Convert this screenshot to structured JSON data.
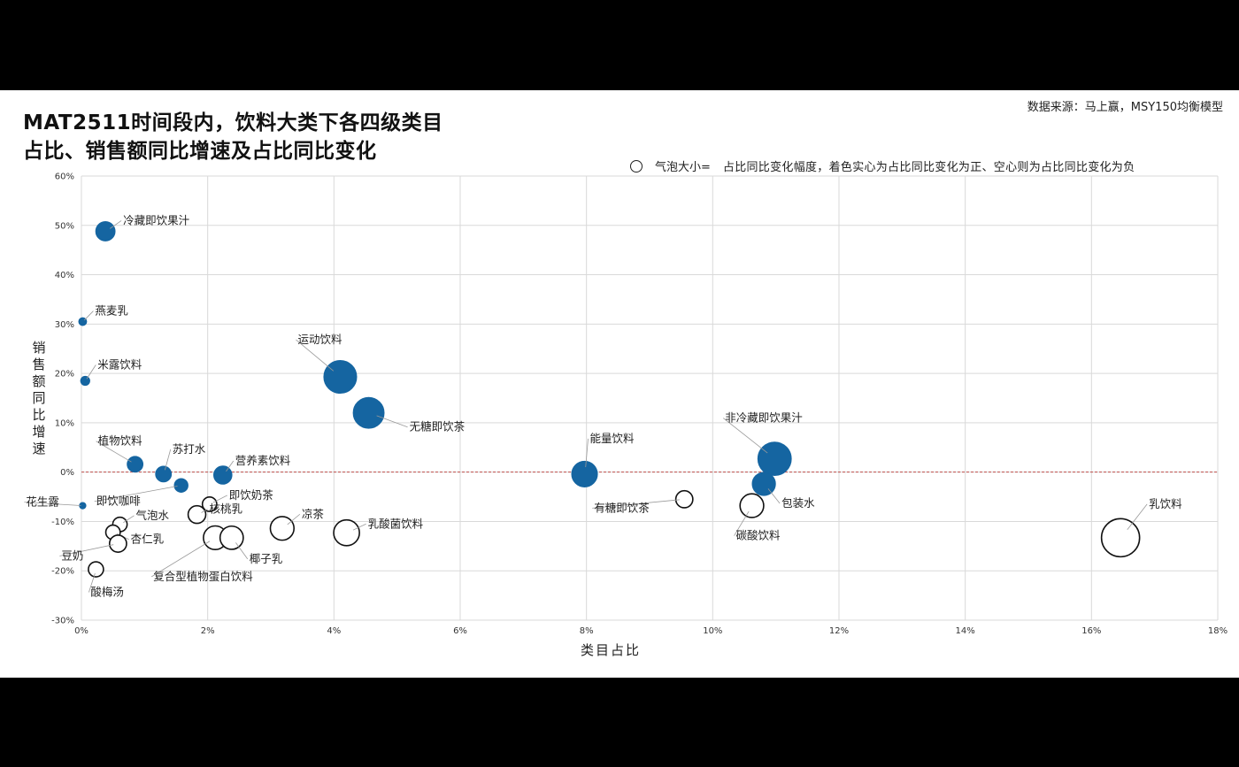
{
  "header": {
    "title_line1": "MAT2511时间段内，饮料大类下各四级类目",
    "title_line2": "占比、销售额同比增速及占比同比变化",
    "source": "数据来源：马上赢，MSY150均衡模型",
    "legend_label": "气泡大小=",
    "legend_desc": "占比同比变化幅度，着色实心为占比同比变化为正、空心则为占比同比变化为负"
  },
  "colors": {
    "positive_fill": "#1565A1",
    "negative_stroke": "#111111",
    "zero_line": "#C0504D",
    "grid": "#D9D9D9",
    "leader": "#999999"
  },
  "chart_data": {
    "type": "scatter",
    "bubble": true,
    "xlabel": "类目占比",
    "ylabel": "销售额同比增速",
    "xlim": [
      0,
      0.18
    ],
    "ylim": [
      -0.3,
      0.6
    ],
    "x_ticks": [
      "0%",
      "2%",
      "4%",
      "6%",
      "8%",
      "10%",
      "12%",
      "14%",
      "16%",
      "18%"
    ],
    "y_ticks": [
      "60%",
      "50%",
      "40%",
      "30%",
      "20%",
      "10%",
      "0%",
      "-10%",
      "-20%",
      "-30%"
    ],
    "grid": true,
    "points": [
      {
        "name": "冷藏即饮果汁",
        "x": 0.0038,
        "y": 0.488,
        "size": 0.9,
        "positive": true
      },
      {
        "name": "燕麦乳",
        "x": 0.0002,
        "y": 0.305,
        "size": 0.15,
        "positive": true
      },
      {
        "name": "米露饮料",
        "x": 0.0006,
        "y": 0.185,
        "size": 0.2,
        "positive": true
      },
      {
        "name": "运动饮料",
        "x": 0.041,
        "y": 0.193,
        "size": 2.6,
        "positive": true
      },
      {
        "name": "无糖即饮茶",
        "x": 0.0455,
        "y": 0.12,
        "size": 2.3,
        "positive": true
      },
      {
        "name": "植物饮料",
        "x": 0.0085,
        "y": 0.016,
        "size": 0.6,
        "positive": true
      },
      {
        "name": "苏打水",
        "x": 0.013,
        "y": -0.004,
        "size": 0.6,
        "positive": true
      },
      {
        "name": "营养素饮料",
        "x": 0.0224,
        "y": -0.006,
        "size": 0.8,
        "positive": true
      },
      {
        "name": "即饮咖啡",
        "x": 0.0158,
        "y": -0.027,
        "size": 0.45,
        "positive": true
      },
      {
        "name": "能量饮料",
        "x": 0.0797,
        "y": -0.004,
        "size": 1.6,
        "positive": true
      },
      {
        "name": "非冷藏即饮果汁",
        "x": 0.1098,
        "y": 0.027,
        "size": 2.7,
        "positive": true
      },
      {
        "name": "包装水",
        "x": 0.1081,
        "y": -0.024,
        "size": 1.3,
        "positive": true
      },
      {
        "name": "花生露",
        "x": 0.0002,
        "y": -0.068,
        "size": 0.1,
        "positive": true
      },
      {
        "name": "即饮奶茶",
        "x": 0.0203,
        "y": -0.065,
        "size": 0.5,
        "positive": false
      },
      {
        "name": "气泡水",
        "x": 0.0061,
        "y": -0.106,
        "size": 0.5,
        "positive": false
      },
      {
        "name": "杏仁乳",
        "x": 0.005,
        "y": -0.122,
        "size": 0.5,
        "positive": false
      },
      {
        "name": "豆奶",
        "x": 0.0058,
        "y": -0.145,
        "size": 0.7,
        "positive": false
      },
      {
        "name": "核桃乳",
        "x": 0.0183,
        "y": -0.086,
        "size": 0.75,
        "positive": false
      },
      {
        "name": "复合型植物蛋白饮料",
        "x": 0.0212,
        "y": -0.133,
        "size": 1.35,
        "positive": false
      },
      {
        "name": "椰子乳",
        "x": 0.0238,
        "y": -0.133,
        "size": 1.3,
        "positive": false
      },
      {
        "name": "凉茶",
        "x": 0.0318,
        "y": -0.114,
        "size": 1.35,
        "positive": false
      },
      {
        "name": "乳酸菌饮料",
        "x": 0.042,
        "y": -0.123,
        "size": 1.6,
        "positive": false
      },
      {
        "name": "酸梅汤",
        "x": 0.0023,
        "y": -0.197,
        "size": 0.55,
        "positive": false
      },
      {
        "name": "有糖即饮茶",
        "x": 0.0955,
        "y": -0.055,
        "size": 0.7,
        "positive": false
      },
      {
        "name": "碳酸饮料",
        "x": 0.1062,
        "y": -0.068,
        "size": 1.35,
        "positive": false
      },
      {
        "name": "乳饮料",
        "x": 0.1646,
        "y": -0.133,
        "size": 3.5,
        "positive": false
      }
    ]
  }
}
